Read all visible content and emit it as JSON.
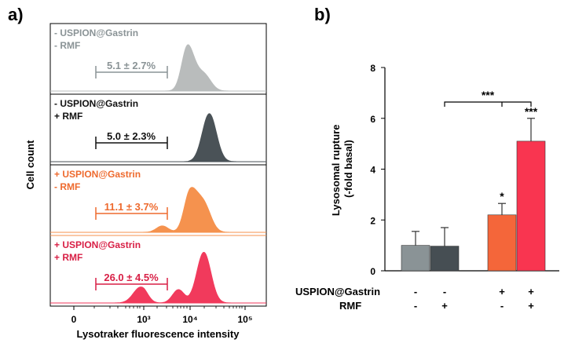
{
  "panel_a_label": "a)",
  "panel_b_label": "b)",
  "chart_data": [
    {
      "type": "histogram-stack",
      "ylabel": "Cell count",
      "xlabel": "Lysotraker fluorescence intensity",
      "x_tick_labels": [
        "0",
        "10³",
        "10⁴",
        "10⁵"
      ],
      "panels": [
        {
          "line1": "- USPION@Gastrin",
          "line2": "- RMF",
          "percent": "5.1 ± 2.7%",
          "color": "#b9bcbc",
          "text_color": "#8a9396",
          "peaks": [
            {
              "log": 3.95,
              "h": 0.85
            },
            {
              "log": 4.25,
              "h": 0.3
            }
          ]
        },
        {
          "line1": "- USPION@Gastrin",
          "line2": "+ RMF",
          "percent": "5.0 ± 2.3%",
          "color": "#4a5257",
          "text_color": "#111111",
          "peaks": [
            {
              "log": 4.35,
              "h": 0.9
            }
          ]
        },
        {
          "line1": "+ USPION@Gastrin",
          "line2": "- RMF",
          "percent": "11.1 ± 3.7%",
          "color": "#f5924e",
          "text_color": "#ee6a2e",
          "peaks": [
            {
              "log": 4.0,
              "h": 0.75
            },
            {
              "log": 4.25,
              "h": 0.5
            },
            {
              "log": 3.4,
              "h": 0.12
            }
          ]
        },
        {
          "line1": "+ USPION@Gastrin",
          "line2": "+ RMF",
          "percent": "26.0 ± 4.5%",
          "color": "#f13a5c",
          "text_color": "#d81f45",
          "peaks": [
            {
              "log": 2.95,
              "h": 0.3
            },
            {
              "log": 4.25,
              "h": 0.95
            },
            {
              "log": 3.75,
              "h": 0.25
            }
          ]
        }
      ]
    },
    {
      "type": "bar",
      "ylabel": "Lysosomal rupture (-fold basal)",
      "ylim": [
        0,
        8
      ],
      "y_ticks": [
        0,
        2,
        4,
        6,
        8
      ],
      "row_labels": [
        "USPION@Gastrin",
        "RMF"
      ],
      "bars": [
        {
          "value": 1.0,
          "error": 0.55,
          "color": "#8a9396",
          "uspion": "-",
          "rmf": "-",
          "sig": ""
        },
        {
          "value": 0.97,
          "error": 0.73,
          "color": "#464e53",
          "uspion": "-",
          "rmf": "+",
          "sig": ""
        },
        {
          "value": 2.2,
          "error": 0.45,
          "color": "#f4663a",
          "uspion": "+",
          "rmf": "-",
          "sig": "*"
        },
        {
          "value": 5.1,
          "error": 0.9,
          "color": "#f93550",
          "uspion": "+",
          "rmf": "+",
          "sig": "***"
        }
      ],
      "bracket_label": "***"
    }
  ]
}
